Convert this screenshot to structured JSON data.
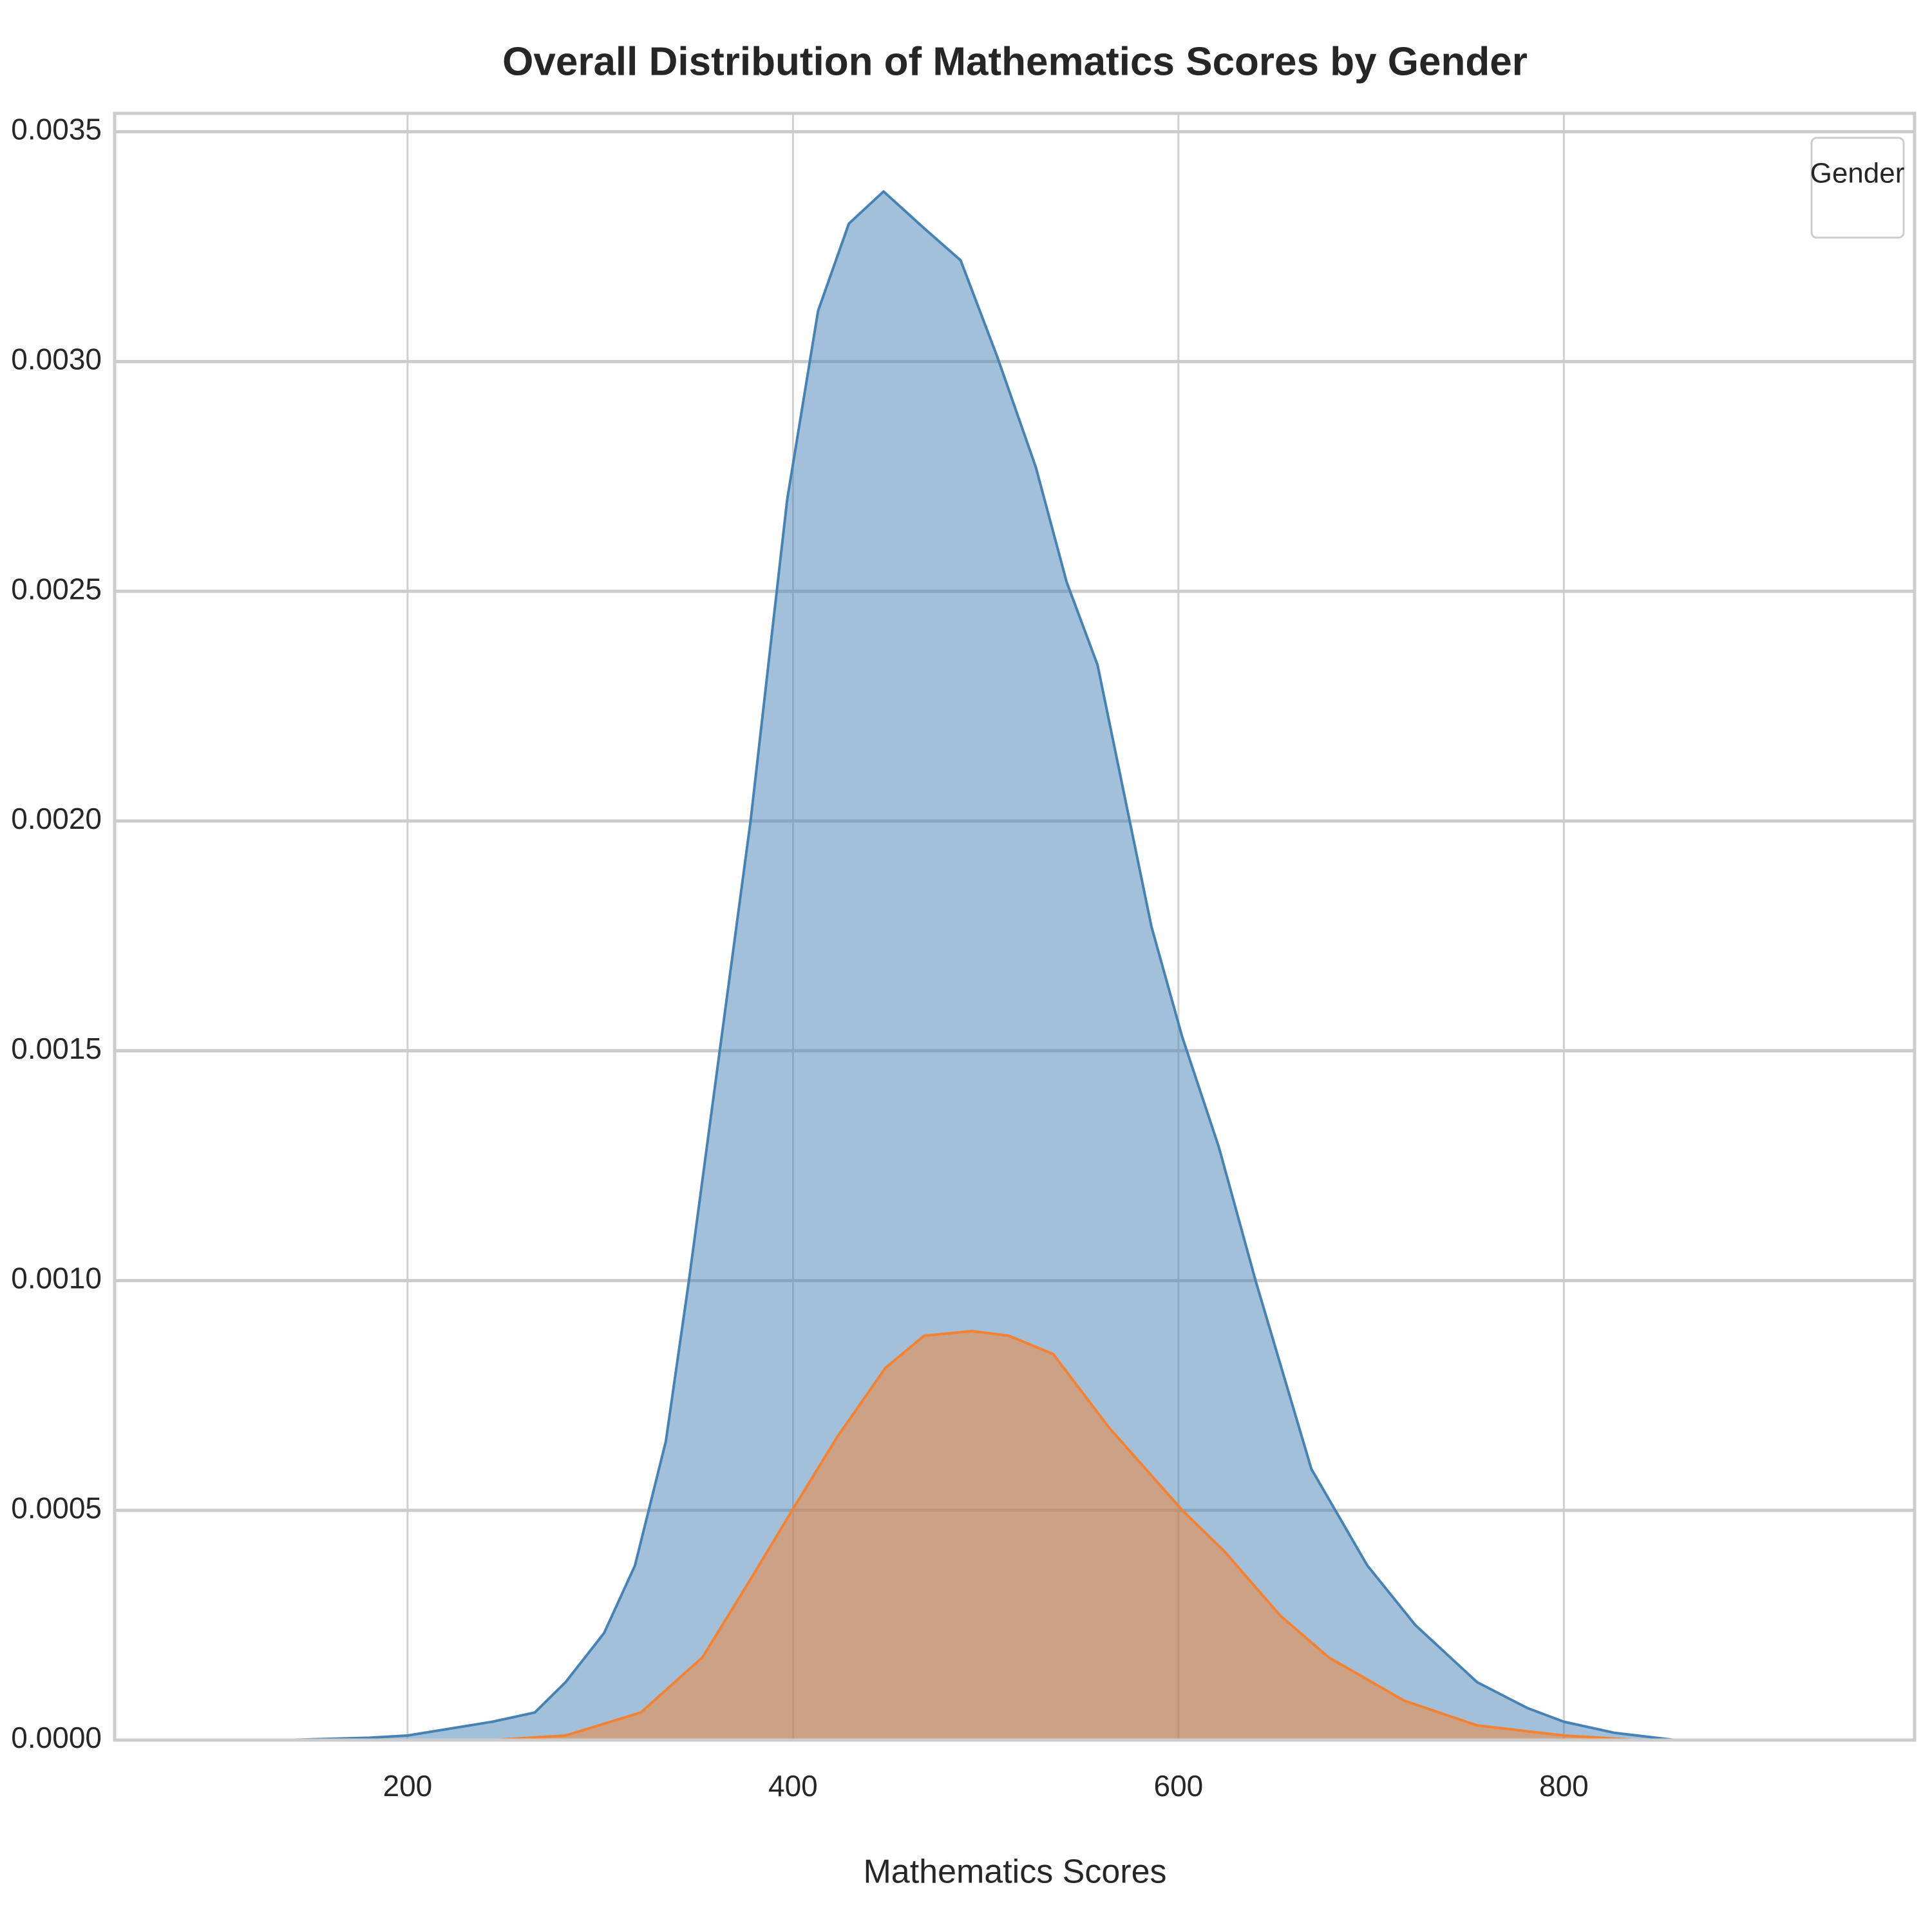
{
  "chart_data": {
    "type": "kde",
    "title": "Overall Distribution of Mathematics Scores by Gender",
    "x_label": "Mathematics Scores",
    "legend_title": "Gender",
    "legend": "upper right",
    "grid": true,
    "xlim": [
      48,
      982
    ],
    "ylim": [
      0,
      0.00354
    ],
    "xticks": [
      200,
      400,
      600,
      800
    ],
    "yticks": [
      {
        "value": 0,
        "label": "0.0000"
      },
      0.0005,
      {
        "value": 0.001,
        "label": "0.0010"
      },
      0.0015,
      {
        "value": 0.002,
        "label": "0.0020"
      },
      0.0025,
      {
        "value": 0.003,
        "label": "0.0030"
      },
      0.0035
    ],
    "series": [
      {
        "color": "#4682b4",
        "x": [
          135,
          180,
          200,
          244,
          266,
          282,
          302,
          318,
          334,
          346,
          362,
          378,
          397,
          413,
          429,
          447,
          468,
          487,
          506,
          526,
          542,
          558,
          586,
          602,
          621,
          640,
          669,
          698,
          723,
          755,
          781,
          800,
          826,
          858,
          883
        ],
        "values": [
          0,
          5e-06,
          1e-05,
          4e-05,
          6e-05,
          0.000126,
          0.000233,
          0.00038,
          0.00065,
          0.001,
          0.0015,
          0.002,
          0.0027,
          0.00311,
          0.0033,
          0.00337,
          0.00329,
          0.00322,
          0.00301,
          0.00277,
          0.00252,
          0.00234,
          0.00177,
          0.00153,
          0.00129,
          0.001,
          0.00059,
          0.00038,
          0.00025,
          0.000126,
          7e-05,
          4e-05,
          1.6e-05,
          0,
          0
        ]
      },
      {
        "color": "#f58231",
        "x": [
          244,
          282,
          321,
          353,
          378,
          401,
          423,
          448,
          468,
          493,
          512,
          535,
          564,
          583,
          602,
          624,
          653,
          678,
          717,
          755,
          800,
          838
        ],
        "values": [
          0,
          1e-05,
          6e-05,
          0.00018,
          0.00035,
          0.00051,
          0.00066,
          0.00081,
          0.00088,
          0.00089,
          0.00088,
          0.00084,
          0.00068,
          0.00059,
          0.0005,
          0.00041,
          0.00027,
          0.00018,
          8.6e-05,
          3.2e-05,
          1e-05,
          0
        ]
      }
    ]
  }
}
